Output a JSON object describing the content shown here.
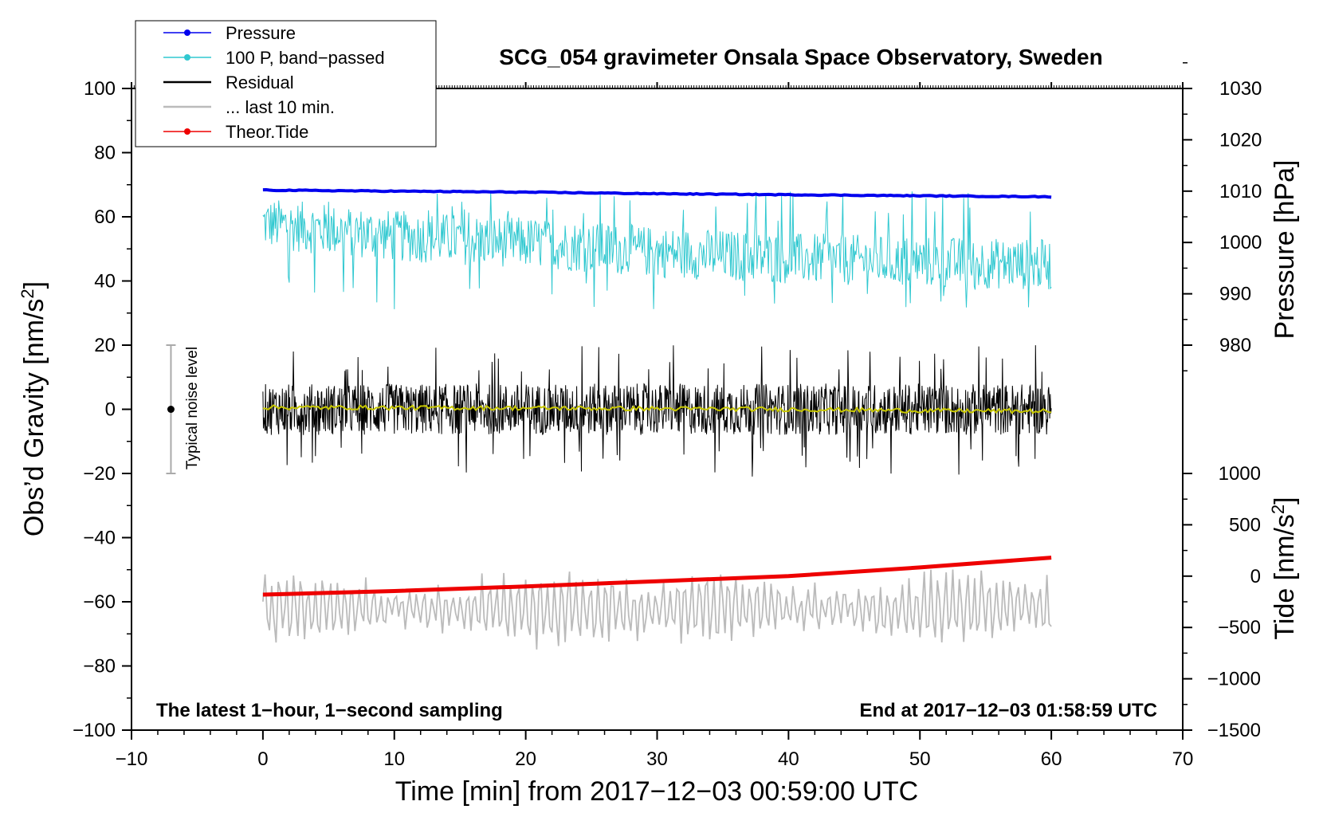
{
  "chart_data": {
    "type": "line",
    "title": "SCG_054 gravimeter Onsala Space Observatory, Sweden",
    "xlabel": "Time [min] from 2017−12−03 00:59:00 UTC",
    "xlim": [
      -10,
      70
    ],
    "x_ticks": [
      -10,
      0,
      10,
      20,
      30,
      40,
      50,
      60,
      70
    ],
    "x_tick_labels": [
      "−10",
      "0",
      "10",
      "20",
      "30",
      "40",
      "50",
      "60",
      "70"
    ],
    "left_axis": {
      "label_main": "Obs’d Gravity [nm/s",
      "label_sup": "2",
      "label_close": "]",
      "ylim": [
        -100,
        100
      ],
      "ticks": [
        -100,
        -80,
        -60,
        -40,
        -20,
        0,
        20,
        40,
        60,
        80,
        100
      ],
      "tick_labels": [
        "−100",
        "−80",
        "−60",
        "−40",
        "−20",
        "0",
        "20",
        "40",
        "60",
        "80",
        "100"
      ]
    },
    "pressure_axis": {
      "label": "Pressure [hPa]",
      "ticks": [
        980,
        990,
        1000,
        1010,
        1020,
        1030
      ],
      "tick_labels": [
        "980",
        "990",
        "1000",
        "1010",
        "1020",
        "1030"
      ],
      "gravity_equivalent": {
        "980": 20,
        "1030": 100
      }
    },
    "tide_axis": {
      "label_main": "Tide [nm/s",
      "label_sup": "2",
      "label_close": "]",
      "ticks": [
        -1500,
        -1000,
        -500,
        0,
        500,
        1000
      ],
      "tick_labels": [
        "−1500",
        "−1000",
        "−500",
        "0",
        "500",
        "1000"
      ],
      "gravity_equivalent": {
        "-1500": -100,
        "1000": -20
      }
    },
    "series": [
      {
        "name": "Pressure",
        "color": "#0000ee",
        "style": "line-dot",
        "axis": "pressure",
        "x": [
          0,
          10,
          20,
          30,
          40,
          50,
          60
        ],
        "values": [
          1010.2,
          1010.0,
          1009.8,
          1009.5,
          1009.3,
          1009.1,
          1008.9
        ]
      },
      {
        "name": "100 P, band−passed",
        "color": "#30c8d0",
        "style": "line-dot",
        "axis": "gravity",
        "x": [
          0,
          10,
          20,
          30,
          40,
          50,
          60
        ],
        "center": [
          58,
          54,
          52,
          49,
          47,
          46,
          45
        ],
        "amplitude": 8,
        "min": 31,
        "max": 68
      },
      {
        "name": "Residual",
        "color": "#000000",
        "style": "line",
        "axis": "gravity",
        "x": [
          0,
          60
        ],
        "center": [
          0,
          0
        ],
        "amplitude": 8,
        "min": -21,
        "max": 20
      },
      {
        "name": "Residual running mean",
        "color": "#c8c800",
        "style": "line",
        "axis": "gravity",
        "x": [
          0,
          10,
          20,
          30,
          40,
          50,
          60
        ],
        "values": [
          0.6,
          0.5,
          0.4,
          0.2,
          0.0,
          -0.4,
          -0.6
        ]
      },
      {
        "name": "... last 10 min.",
        "color": "#bbbbbb",
        "style": "line",
        "axis": "gravity",
        "x": [
          0,
          60
        ],
        "center": [
          -62,
          -62
        ],
        "amplitude": 7,
        "min": -80,
        "max": -48
      },
      {
        "name": "Theor.Tide",
        "color": "#ee0000",
        "style": "line-dot",
        "axis": "tide",
        "x": [
          0,
          10,
          20,
          30,
          40,
          50,
          60
        ],
        "values": [
          -180,
          -145,
          -100,
          -50,
          0,
          85,
          180
        ]
      }
    ],
    "annotations": {
      "noise_label": "Typical noise level",
      "noise_range": [
        -20,
        20
      ],
      "noise_x": -7,
      "bottom_left": "The latest 1−hour, 1−second sampling",
      "bottom_right": "End at 2017−12−03 01:58:59 UTC"
    },
    "legend": {
      "placement": "top-left",
      "entries": [
        "Pressure",
        "100 P, band−passed",
        "Residual",
        "... last 10 min.",
        "Theor.Tide"
      ]
    },
    "grid": false
  }
}
